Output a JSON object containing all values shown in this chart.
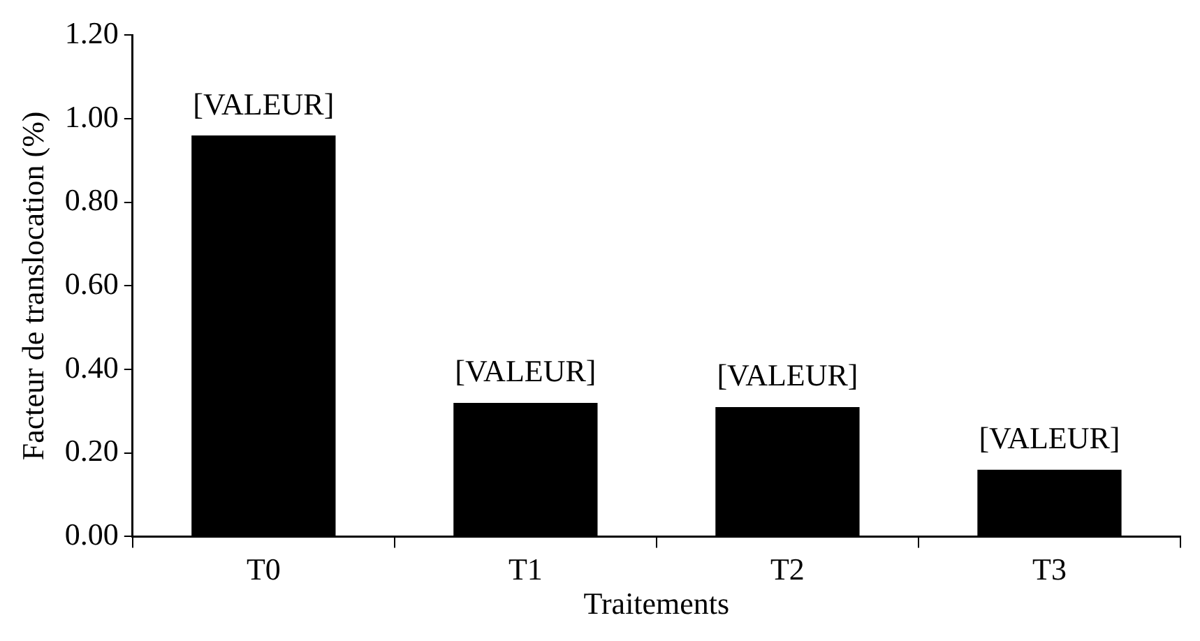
{
  "chart_data": {
    "type": "bar",
    "xlabel": "Traitements",
    "ylabel": "Facteur de translocation (%)",
    "categories": [
      "T0",
      "T1",
      "T2",
      "T3"
    ],
    "values": [
      0.96,
      0.32,
      0.31,
      0.16
    ],
    "value_labels": [
      "[VALEUR]",
      "[VALEUR]",
      "[VALEUR]",
      "[VALEUR]"
    ],
    "color": "#000000",
    "ylim": [
      0,
      1.2
    ],
    "yticks": [
      {
        "value": 0,
        "label": "0.00"
      },
      {
        "value": 0.2,
        "label": "0.20"
      },
      {
        "value": 0.4,
        "label": "0.40"
      },
      {
        "value": 0.6,
        "label": "0.60"
      },
      {
        "value": 0.8,
        "label": "0.80"
      },
      {
        "value": 1.0,
        "label": "1.00"
      },
      {
        "value": 1.2,
        "label": "1.20"
      }
    ],
    "grid": false,
    "legend": false
  }
}
